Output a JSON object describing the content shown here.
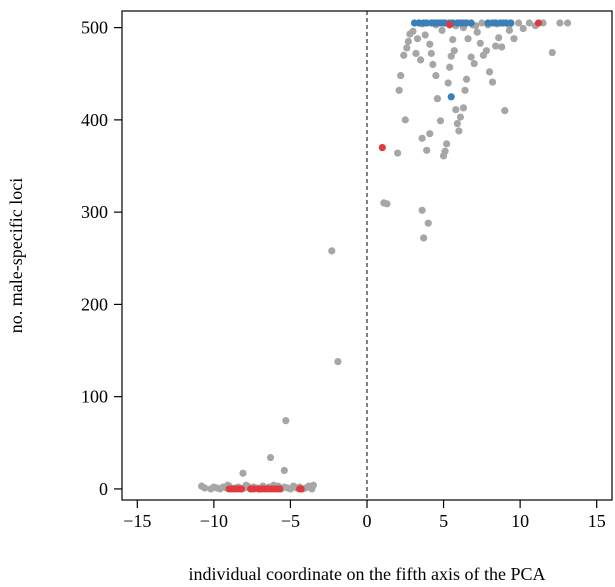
{
  "chart_data": {
    "type": "scatter",
    "title": "",
    "xlabel": "individual coordinate on the fifth axis of the PCA",
    "ylabel": "no. male-specific loci",
    "xlim": [
      -16,
      16
    ],
    "ylim": [
      -12,
      518
    ],
    "xticks": [
      -15,
      -10,
      -5,
      0,
      5,
      10,
      15
    ],
    "xtick_labels": [
      "−15",
      "−10",
      "−5",
      "0",
      "5",
      "10",
      "15"
    ],
    "yticks": [
      0,
      100,
      200,
      300,
      400,
      500
    ],
    "ytick_labels": [
      "0",
      "100",
      "200",
      "300",
      "400",
      "500"
    ],
    "reference_line": {
      "x": 0,
      "style": "dashed"
    },
    "grid": false,
    "legend": "none",
    "series": [
      {
        "color": "#a6a6a6",
        "points": [
          [
            -10.8,
            3
          ],
          [
            -10.6,
            1
          ],
          [
            -10.2,
            0
          ],
          [
            -10.0,
            2
          ],
          [
            -9.8,
            1
          ],
          [
            -9.6,
            0
          ],
          [
            -9.4,
            2
          ],
          [
            -9.2,
            1
          ],
          [
            -9.0,
            3
          ],
          [
            -8.8,
            0
          ],
          [
            -8.6,
            1
          ],
          [
            -8.4,
            2
          ],
          [
            -8.2,
            0
          ],
          [
            -8.0,
            1
          ],
          [
            -7.8,
            3
          ],
          [
            -7.6,
            0
          ],
          [
            -7.4,
            2
          ],
          [
            -7.2,
            1
          ],
          [
            -7.0,
            0
          ],
          [
            -6.8,
            3
          ],
          [
            -6.6,
            1
          ],
          [
            -6.4,
            2
          ],
          [
            -6.2,
            0
          ],
          [
            -6.0,
            1
          ],
          [
            -5.8,
            3
          ],
          [
            -5.6,
            0
          ],
          [
            -5.4,
            2
          ],
          [
            -5.2,
            1
          ],
          [
            -5.0,
            0
          ],
          [
            -4.8,
            3
          ],
          [
            -4.6,
            1
          ],
          [
            -4.4,
            2
          ],
          [
            -4.2,
            0
          ],
          [
            -4.0,
            1
          ],
          [
            -3.8,
            3
          ],
          [
            -3.6,
            0
          ],
          [
            -3.5,
            4
          ],
          [
            -9.1,
            4
          ],
          [
            -7.9,
            4
          ],
          [
            -6.1,
            4
          ],
          [
            -8.1,
            17
          ],
          [
            -6.3,
            34
          ],
          [
            -5.4,
            20
          ],
          [
            -5.3,
            74
          ],
          [
            -2.3,
            258
          ],
          [
            -1.9,
            138
          ],
          [
            1.1,
            310
          ],
          [
            1.3,
            309
          ],
          [
            3.6,
            302
          ],
          [
            3.7,
            272
          ],
          [
            4.0,
            288
          ],
          [
            3.6,
            380
          ],
          [
            3.9,
            367
          ],
          [
            4.1,
            385
          ],
          [
            2.0,
            364
          ],
          [
            2.2,
            448
          ],
          [
            2.1,
            432
          ],
          [
            2.4,
            470
          ],
          [
            2.5,
            400
          ],
          [
            2.6,
            478
          ],
          [
            2.8,
            493
          ],
          [
            2.7,
            485
          ],
          [
            3.0,
            496
          ],
          [
            3.2,
            472
          ],
          [
            3.3,
            488
          ],
          [
            3.5,
            465
          ],
          [
            3.8,
            492
          ],
          [
            4.1,
            482
          ],
          [
            4.2,
            472
          ],
          [
            4.3,
            460
          ],
          [
            4.5,
            448
          ],
          [
            4.6,
            423
          ],
          [
            4.8,
            399
          ],
          [
            5.0,
            361
          ],
          [
            5.1,
            366
          ],
          [
            5.2,
            374
          ],
          [
            5.3,
            440
          ],
          [
            5.4,
            457
          ],
          [
            5.5,
            469
          ],
          [
            5.6,
            487
          ],
          [
            5.7,
            475
          ],
          [
            5.8,
            411
          ],
          [
            5.9,
            396
          ],
          [
            6.0,
            388
          ],
          [
            6.1,
            403
          ],
          [
            6.3,
            413
          ],
          [
            6.4,
            432
          ],
          [
            6.5,
            444
          ],
          [
            6.6,
            488
          ],
          [
            6.8,
            468
          ],
          [
            7.0,
            461
          ],
          [
            7.2,
            495
          ],
          [
            7.4,
            483
          ],
          [
            7.6,
            470
          ],
          [
            7.8,
            475
          ],
          [
            8.0,
            452
          ],
          [
            8.2,
            441
          ],
          [
            8.4,
            480
          ],
          [
            8.6,
            489
          ],
          [
            8.8,
            479
          ],
          [
            9.0,
            410
          ],
          [
            9.3,
            497
          ],
          [
            9.6,
            488
          ],
          [
            10.2,
            499
          ],
          [
            11.0,
            502
          ],
          [
            12.1,
            473
          ],
          [
            12.6,
            505
          ],
          [
            13.1,
            505
          ],
          [
            10.6,
            505
          ],
          [
            11.5,
            505
          ],
          [
            9.9,
            505
          ],
          [
            7.5,
            505
          ],
          [
            6.9,
            503
          ],
          [
            5.7,
            504
          ],
          [
            4.5,
            503
          ],
          [
            3.6,
            504
          ],
          [
            4.9,
            497
          ],
          [
            5.8,
            502
          ],
          [
            6.3,
            500
          ],
          [
            7.1,
            502
          ],
          [
            7.9,
            503
          ],
          [
            8.5,
            504
          ],
          [
            9.3,
            503
          ],
          [
            3.4,
            505
          ]
        ]
      },
      {
        "color": "#3a7fb5",
        "points": [
          [
            3.1,
            505
          ],
          [
            3.4,
            505
          ],
          [
            3.7,
            505
          ],
          [
            3.9,
            505
          ],
          [
            4.2,
            505
          ],
          [
            4.4,
            505
          ],
          [
            4.6,
            505
          ],
          [
            4.8,
            505
          ],
          [
            5.0,
            505
          ],
          [
            5.1,
            505
          ],
          [
            5.4,
            505
          ],
          [
            5.6,
            505
          ],
          [
            5.9,
            505
          ],
          [
            6.1,
            505
          ],
          [
            6.3,
            505
          ],
          [
            6.5,
            505
          ],
          [
            6.8,
            505
          ],
          [
            7.9,
            505
          ],
          [
            8.2,
            505
          ],
          [
            8.4,
            505
          ],
          [
            8.7,
            505
          ],
          [
            8.9,
            505
          ],
          [
            9.1,
            505
          ],
          [
            9.4,
            505
          ],
          [
            5.5,
            425
          ]
        ]
      },
      {
        "color": "#e0393e",
        "points": [
          [
            -9.0,
            0
          ],
          [
            -8.8,
            0
          ],
          [
            -8.6,
            0
          ],
          [
            -8.4,
            0
          ],
          [
            -8.2,
            0
          ],
          [
            -7.6,
            0
          ],
          [
            -7.4,
            0
          ],
          [
            -7.1,
            0
          ],
          [
            -6.9,
            0
          ],
          [
            -6.7,
            0
          ],
          [
            -6.5,
            0
          ],
          [
            -6.3,
            0
          ],
          [
            -6.1,
            0
          ],
          [
            -5.9,
            0
          ],
          [
            -5.7,
            0
          ],
          [
            -4.4,
            0
          ],
          [
            -4.3,
            0
          ],
          [
            1.0,
            370
          ],
          [
            5.4,
            503
          ],
          [
            11.2,
            505
          ]
        ]
      }
    ]
  }
}
